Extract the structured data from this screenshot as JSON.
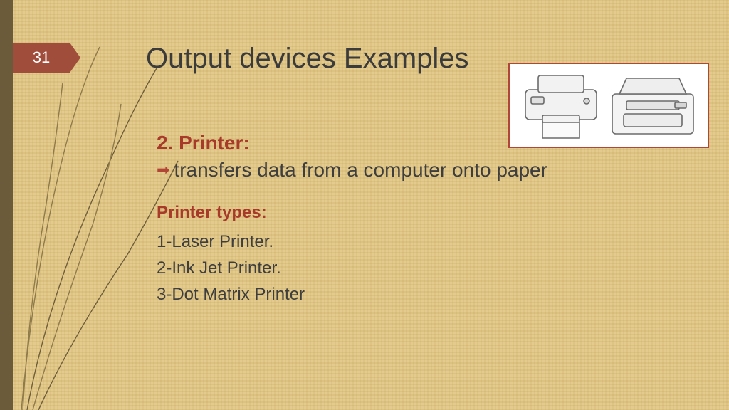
{
  "slide_number": "31",
  "title": "Output devices Examples",
  "subhead": "2. Printer:",
  "bullet": "transfers data from a computer onto paper",
  "types_head": "Printer types:",
  "types": [
    "1-Laser Printer.",
    "2-Ink Jet Printer.",
    " 3-Dot Matrix Printer"
  ],
  "colors": {
    "leftbar": "#6b5b3b",
    "slidenum_bg": "#a14d3b",
    "arrow": "#a14d3b",
    "title_text": "#3b3b3b",
    "body_text": "#3e3e3e",
    "accent_red": "#a83a2a",
    "bullet_red": "#b24636",
    "image_border": "#b24636",
    "grass1": "#8e7a4a",
    "grass2": "#6e5d3a",
    "printer_stroke": "#6b6b6b"
  }
}
